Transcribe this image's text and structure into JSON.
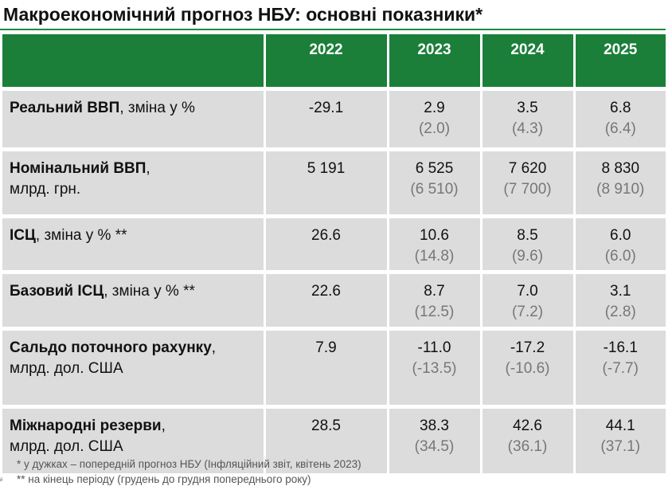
{
  "title": "Макроекономічний прогноз НБУ: основні показники*",
  "columns": [
    "2022",
    "2023",
    "2024",
    "2025"
  ],
  "rows": [
    {
      "label_bold": "Реальний ВВП",
      "label_rest": ", зміна у %",
      "label_line2": "",
      "values": [
        "-29.1",
        "2.9",
        "3.5",
        "6.8"
      ],
      "previous": [
        "",
        "(2.0)",
        "(4.3)",
        "(6.4)"
      ]
    },
    {
      "label_bold": "Номінальний ВВП",
      "label_rest": ",",
      "label_line2": "млрд. грн.",
      "values": [
        "5 191",
        "6 525",
        "7 620",
        "8 830"
      ],
      "previous": [
        "",
        "(6 510)",
        "(7 700)",
        "(8 910)"
      ]
    },
    {
      "label_bold": "ІСЦ",
      "label_rest": ", зміна у % **",
      "label_line2": "",
      "values": [
        "26.6",
        "10.6",
        "8.5",
        "6.0"
      ],
      "previous": [
        "",
        "(14.8)",
        "(9.6)",
        "(6.0)"
      ]
    },
    {
      "label_bold": "Базовий ІСЦ",
      "label_rest": ", зміна у % **",
      "label_line2": "",
      "values": [
        "22.6",
        "8.7",
        "7.0",
        "3.1"
      ],
      "previous": [
        "",
        "(12.5)",
        "(7.2)",
        "(2.8)"
      ]
    },
    {
      "label_bold": "Сальдо поточного рахунку",
      "label_rest": ",",
      "label_line2": "млрд. дол. США",
      "values": [
        "7.9",
        "-11.0",
        "-17.2",
        "-16.1"
      ],
      "previous": [
        "",
        "(-13.5)",
        "(-10.6)",
        "(-7.7)"
      ]
    },
    {
      "label_bold": "Міжнародні резерви",
      "label_rest": ",",
      "label_line2": "млрд. дол. США",
      "values": [
        "28.5",
        "38.3",
        "42.6",
        "44.1"
      ],
      "previous": [
        "",
        "(34.5)",
        "(36.1)",
        "(37.1)"
      ]
    }
  ],
  "footnotes": [
    "* у дужках – попередній прогноз НБУ (Інфляційний звіт, квітень 2023)",
    "** на кінець періоду (грудень до грудня попереднього року)"
  ],
  "corner_mark": "й"
}
